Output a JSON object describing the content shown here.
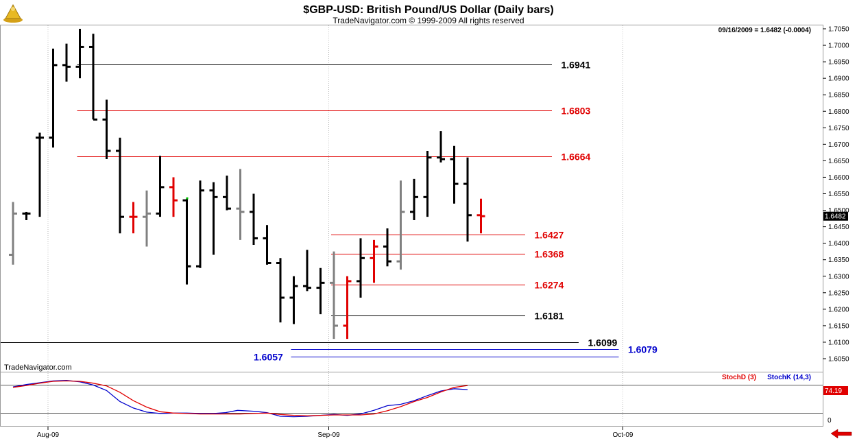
{
  "header": {
    "title": "$GBP-USD:  British Pound/US Dollar  (Daily bars)",
    "copyright": "TradeNavigator.com © 1999-2009 All rights reserved",
    "quote": "09/16/2009 = 1.6482 (-0.0004)",
    "watermark": "TradeNavigator.com"
  },
  "colors": {
    "up_bar": "#000000",
    "down_bar": "#808080",
    "highlight_bar": "#e00000",
    "red_level": "#e00000",
    "black_level": "#000000",
    "blue_level": "#0000cc",
    "stoch_d": "#e00000",
    "stoch_k": "#0000cc",
    "price_box": "#000000"
  },
  "icons": {
    "logo": "gold-trophy-icon",
    "nav": "red-left-arrow-icon"
  },
  "chart_data": [
    {
      "type": "ohlc",
      "title": "$GBP-USD:  British Pound/US Dollar  (Daily bars)",
      "ylim": [
        1.602,
        1.706
      ],
      "yticks": [
        "1.7050",
        "1.7000",
        "1.6950",
        "1.6900",
        "1.6850",
        "1.6800",
        "1.6750",
        "1.6700",
        "1.6650",
        "1.6600",
        "1.6550",
        "1.6500",
        "1.6450",
        "1.6400",
        "1.6350",
        "1.6300",
        "1.6250",
        "1.6200",
        "1.6150",
        "1.6100",
        "1.6050"
      ],
      "x_labels": [
        {
          "label": "Aug-09",
          "bar": 2
        },
        {
          "label": "Sep-09",
          "bar": 23
        },
        {
          "label": "Oct-09",
          "bar": 45
        }
      ],
      "last_price": "1.6482",
      "bars": [
        {
          "o": 1.6365,
          "h": 1.6525,
          "l": 1.6335,
          "c": 1.649,
          "col": "gray"
        },
        {
          "o": 1.649,
          "h": 1.6495,
          "l": 1.647,
          "c": 1.649,
          "col": "black"
        },
        {
          "o": 1.672,
          "h": 1.6735,
          "l": 1.648,
          "c": 1.672,
          "col": "black"
        },
        {
          "o": 1.672,
          "h": 1.699,
          "l": 1.669,
          "c": 1.694,
          "col": "black"
        },
        {
          "o": 1.694,
          "h": 1.7005,
          "l": 1.689,
          "c": 1.6935,
          "col": "black"
        },
        {
          "o": 1.6935,
          "h": 1.705,
          "l": 1.69,
          "c": 1.6995,
          "col": "black"
        },
        {
          "o": 1.6995,
          "h": 1.7035,
          "l": 1.6775,
          "c": 1.6775,
          "col": "black"
        },
        {
          "o": 1.6775,
          "h": 1.6835,
          "l": 1.6655,
          "c": 1.668,
          "col": "black"
        },
        {
          "o": 1.668,
          "h": 1.672,
          "l": 1.643,
          "c": 1.648,
          "col": "black"
        },
        {
          "o": 1.648,
          "h": 1.6525,
          "l": 1.643,
          "c": 1.648,
          "col": "red"
        },
        {
          "o": 1.648,
          "h": 1.656,
          "l": 1.639,
          "c": 1.649,
          "col": "gray"
        },
        {
          "o": 1.649,
          "h": 1.6665,
          "l": 1.648,
          "c": 1.657,
          "col": "black"
        },
        {
          "o": 1.657,
          "h": 1.66,
          "l": 1.648,
          "c": 1.653,
          "col": "red"
        },
        {
          "o": 1.653,
          "h": 1.6535,
          "l": 1.6275,
          "c": 1.633,
          "col": "black"
        },
        {
          "o": 1.633,
          "h": 1.659,
          "l": 1.6325,
          "c": 1.656,
          "col": "black"
        },
        {
          "o": 1.656,
          "h": 1.6585,
          "l": 1.6365,
          "c": 1.654,
          "col": "black"
        },
        {
          "o": 1.654,
          "h": 1.6605,
          "l": 1.65,
          "c": 1.6505,
          "col": "black"
        },
        {
          "o": 1.6505,
          "h": 1.6625,
          "l": 1.641,
          "c": 1.6495,
          "col": "gray"
        },
        {
          "o": 1.6495,
          "h": 1.655,
          "l": 1.6395,
          "c": 1.6415,
          "col": "black"
        },
        {
          "o": 1.6415,
          "h": 1.6455,
          "l": 1.6335,
          "c": 1.634,
          "col": "black"
        },
        {
          "o": 1.634,
          "h": 1.6355,
          "l": 1.616,
          "c": 1.6235,
          "col": "black"
        },
        {
          "o": 1.6235,
          "h": 1.63,
          "l": 1.6155,
          "c": 1.627,
          "col": "black"
        },
        {
          "o": 1.627,
          "h": 1.638,
          "l": 1.6255,
          "c": 1.6265,
          "col": "black"
        },
        {
          "o": 1.6265,
          "h": 1.6325,
          "l": 1.6185,
          "c": 1.628,
          "col": "black"
        },
        {
          "o": 1.628,
          "h": 1.6375,
          "l": 1.611,
          "c": 1.615,
          "col": "gray"
        },
        {
          "o": 1.615,
          "h": 1.63,
          "l": 1.611,
          "c": 1.6285,
          "col": "red"
        },
        {
          "o": 1.6285,
          "h": 1.6415,
          "l": 1.6235,
          "c": 1.6355,
          "col": "black"
        },
        {
          "o": 1.6355,
          "h": 1.641,
          "l": 1.628,
          "c": 1.639,
          "col": "red"
        },
        {
          "o": 1.639,
          "h": 1.6445,
          "l": 1.633,
          "c": 1.6345,
          "col": "black"
        },
        {
          "o": 1.6345,
          "h": 1.659,
          "l": 1.632,
          "c": 1.6495,
          "col": "gray"
        },
        {
          "o": 1.6495,
          "h": 1.6595,
          "l": 1.647,
          "c": 1.654,
          "col": "black"
        },
        {
          "o": 1.654,
          "h": 1.668,
          "l": 1.648,
          "c": 1.666,
          "col": "black"
        },
        {
          "o": 1.666,
          "h": 1.674,
          "l": 1.6645,
          "c": 1.6655,
          "col": "black"
        },
        {
          "o": 1.6655,
          "h": 1.6695,
          "l": 1.652,
          "c": 1.658,
          "col": "black"
        },
        {
          "o": 1.658,
          "h": 1.666,
          "l": 1.6405,
          "c": 1.6485,
          "col": "black"
        },
        {
          "o": 1.6485,
          "h": 1.6535,
          "l": 1.643,
          "c": 1.6482,
          "col": "red"
        }
      ],
      "levels": [
        {
          "value": 1.6941,
          "label": "1.6941",
          "color": "black",
          "from_bar": 5,
          "to_bar": 40,
          "label_bar": 41
        },
        {
          "value": 1.6803,
          "label": "1.6803",
          "color": "red",
          "from_bar": 5,
          "to_bar": 40,
          "label_bar": 41
        },
        {
          "value": 1.6664,
          "label": "1.6664",
          "color": "red",
          "from_bar": 5,
          "to_bar": 40,
          "label_bar": 41
        },
        {
          "value": 1.6427,
          "label": "1.6427",
          "color": "red",
          "from_bar": 24,
          "to_bar": 38,
          "label_bar": 39
        },
        {
          "value": 1.6368,
          "label": "1.6368",
          "color": "red",
          "from_bar": 24,
          "to_bar": 38,
          "label_bar": 39
        },
        {
          "value": 1.6274,
          "label": "1.6274",
          "color": "red",
          "from_bar": 24,
          "to_bar": 38,
          "label_bar": 39
        },
        {
          "value": 1.6181,
          "label": "1.6181",
          "color": "black",
          "from_bar": 24,
          "to_bar": 38,
          "label_bar": 39
        },
        {
          "value": 1.6099,
          "label": "1.6099",
          "color": "black",
          "from_bar": -1,
          "to_bar": 42,
          "label_bar": 43
        },
        {
          "value": 1.6079,
          "label": "1.6079",
          "color": "blue",
          "from_bar": 21,
          "to_bar": 45,
          "label_bar": 46
        },
        {
          "value": 1.6057,
          "label": "1.6057",
          "color": "blue",
          "from_bar": 21,
          "to_bar": 45,
          "label_bar": 18
        }
      ]
    },
    {
      "type": "line",
      "ylim": [
        0,
        100
      ],
      "ytick_label": "0",
      "reference_lines": [
        20,
        80
      ],
      "legend": [
        {
          "name": "StochD (3)",
          "color": "red"
        },
        {
          "name": "StochK (14,3)",
          "color": "blue"
        }
      ],
      "last_value": "74.19",
      "series": [
        {
          "name": "StochD (3)",
          "color": "red",
          "x": [
            0,
            1,
            2,
            3,
            4,
            5,
            6,
            7,
            8,
            9,
            10,
            11,
            12,
            13,
            14,
            15,
            16,
            17,
            18,
            19,
            20,
            21,
            22,
            23,
            24,
            25,
            26,
            27,
            28,
            29,
            30,
            31,
            32,
            33,
            34
          ],
          "values": [
            75,
            79,
            84,
            88,
            89,
            88,
            84,
            78,
            64,
            46,
            32,
            22,
            19,
            18,
            17,
            17,
            17,
            17,
            18,
            19,
            16,
            14,
            13,
            14,
            15,
            15,
            15,
            17,
            24,
            33,
            44,
            53,
            65,
            75,
            79
          ]
        },
        {
          "name": "StochK (14,3)",
          "color": "blue",
          "x": [
            0,
            1,
            2,
            3,
            4,
            5,
            6,
            7,
            8,
            9,
            10,
            11,
            12,
            13,
            14,
            15,
            15.9,
            16.8,
            18,
            19,
            20,
            21,
            22,
            23,
            24,
            25,
            26,
            27,
            28,
            29,
            30,
            31,
            32,
            33,
            34
          ],
          "values": [
            76,
            81,
            85,
            89,
            90,
            87,
            80,
            68,
            44,
            30,
            21,
            18,
            19,
            19,
            18,
            18,
            20,
            25,
            23,
            20,
            12,
            11,
            12,
            14,
            16,
            14,
            17,
            25,
            35,
            38,
            46,
            57,
            67,
            72,
            70
          ]
        }
      ]
    }
  ]
}
